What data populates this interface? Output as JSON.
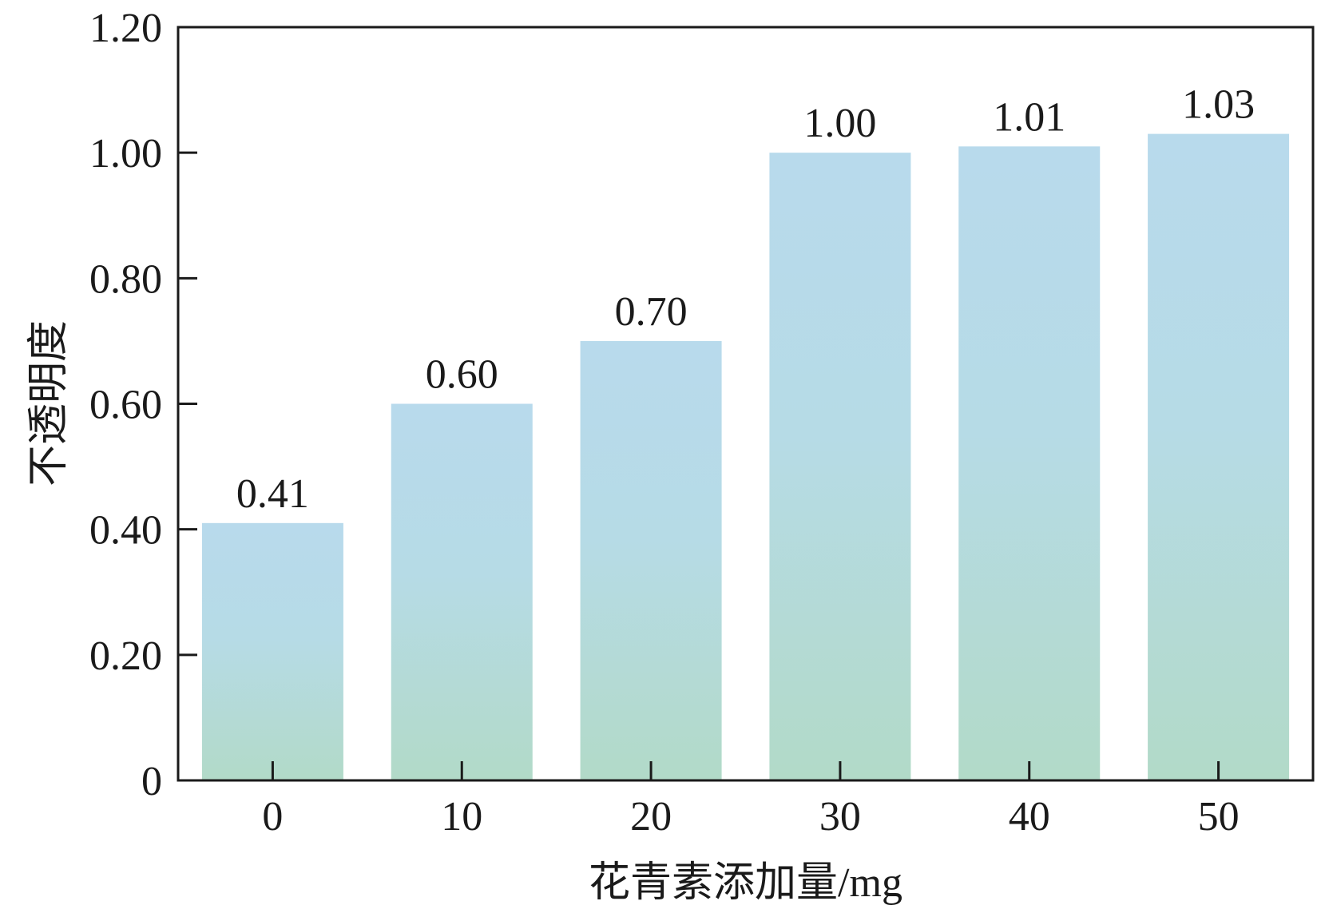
{
  "chart_data": {
    "type": "bar",
    "categories": [
      "0",
      "10",
      "20",
      "30",
      "40",
      "50"
    ],
    "values": [
      0.41,
      0.6,
      0.7,
      1.0,
      1.01,
      1.03
    ],
    "data_labels": [
      "0.41",
      "0.60",
      "0.70",
      "1.00",
      "1.01",
      "1.03"
    ],
    "xlabel": "花青素添加量/mg",
    "ylabel": "不透明度",
    "ylim": [
      0,
      1.2
    ],
    "yticks": [
      0,
      0.2,
      0.4,
      0.6,
      0.8,
      1.0,
      1.2
    ],
    "ytick_labels": [
      "0",
      "0.20",
      "0.40",
      "0.60",
      "0.80",
      "1.00",
      "1.20"
    ],
    "grid": false,
    "colors": {
      "bar_top": "#b8daec",
      "bar_bottom": "#b2dac8",
      "axis": "#1a1a1a"
    }
  }
}
